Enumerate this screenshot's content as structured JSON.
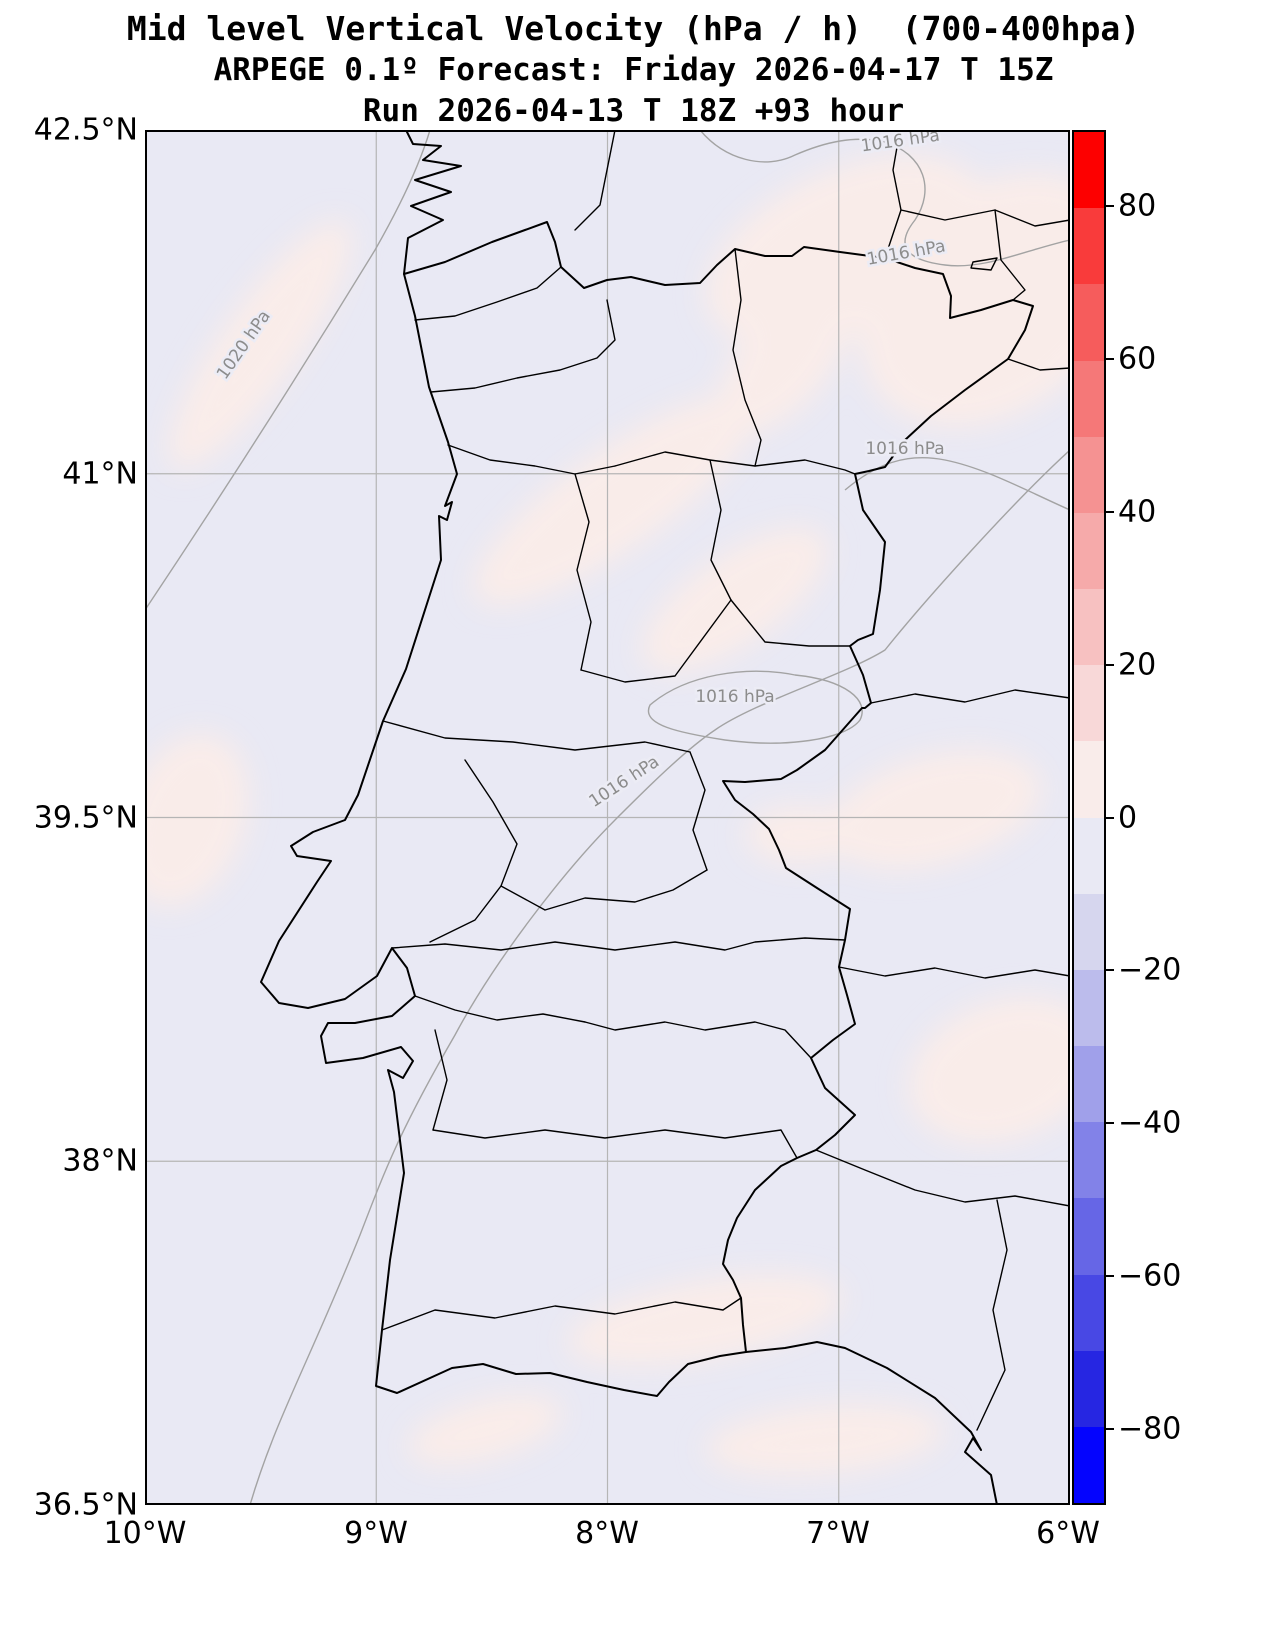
{
  "title": {
    "line1": "Mid level Vertical Velocity (hPa / h)  (700-400hpa)",
    "line2": "ARPEGE 0.1º Forecast: Friday 2026-04-17 T 15Z",
    "line3": "Run 2026-04-13 T 18Z +93 hour"
  },
  "axes": {
    "y_ticks": [
      "42.5°N",
      "41°N",
      "39.5°N",
      "38°N",
      "36.5°N"
    ],
    "x_ticks": [
      "10°W",
      "9°W",
      "8°W",
      "7°W",
      "6°W"
    ]
  },
  "contours": {
    "labels": [
      "1020 hPa",
      "1016 hPa",
      "1016 hPa",
      "1016 hPa",
      "1016 hPa",
      "1016 hPa"
    ]
  },
  "colorbar": {
    "min": -90,
    "max": 90,
    "ticks": [
      "80",
      "60",
      "40",
      "20",
      "0",
      "−20",
      "−40",
      "−60",
      "−80"
    ],
    "segment_colors": [
      "#fd0000",
      "#f93b3b",
      "#f65c5c",
      "#f57878",
      "#f59292",
      "#f6aaaa",
      "#f7c1c1",
      "#f8d8d8",
      "#f9ecea",
      "#e9e9f4",
      "#d6d6ee",
      "#bcbcec",
      "#a0a0ea",
      "#8282e8",
      "#6666e6",
      "#4848e4",
      "#2626e2",
      "#0404fe"
    ]
  },
  "colors": {
    "page_bg": "#ffffff",
    "field_base": "#e9e9f4",
    "field_positive": "#f9ece9",
    "boundary": "#000000",
    "grid": "#b5b5b5",
    "isobar": "#a3a3a3",
    "isobar_label": "#8c8c8c"
  }
}
